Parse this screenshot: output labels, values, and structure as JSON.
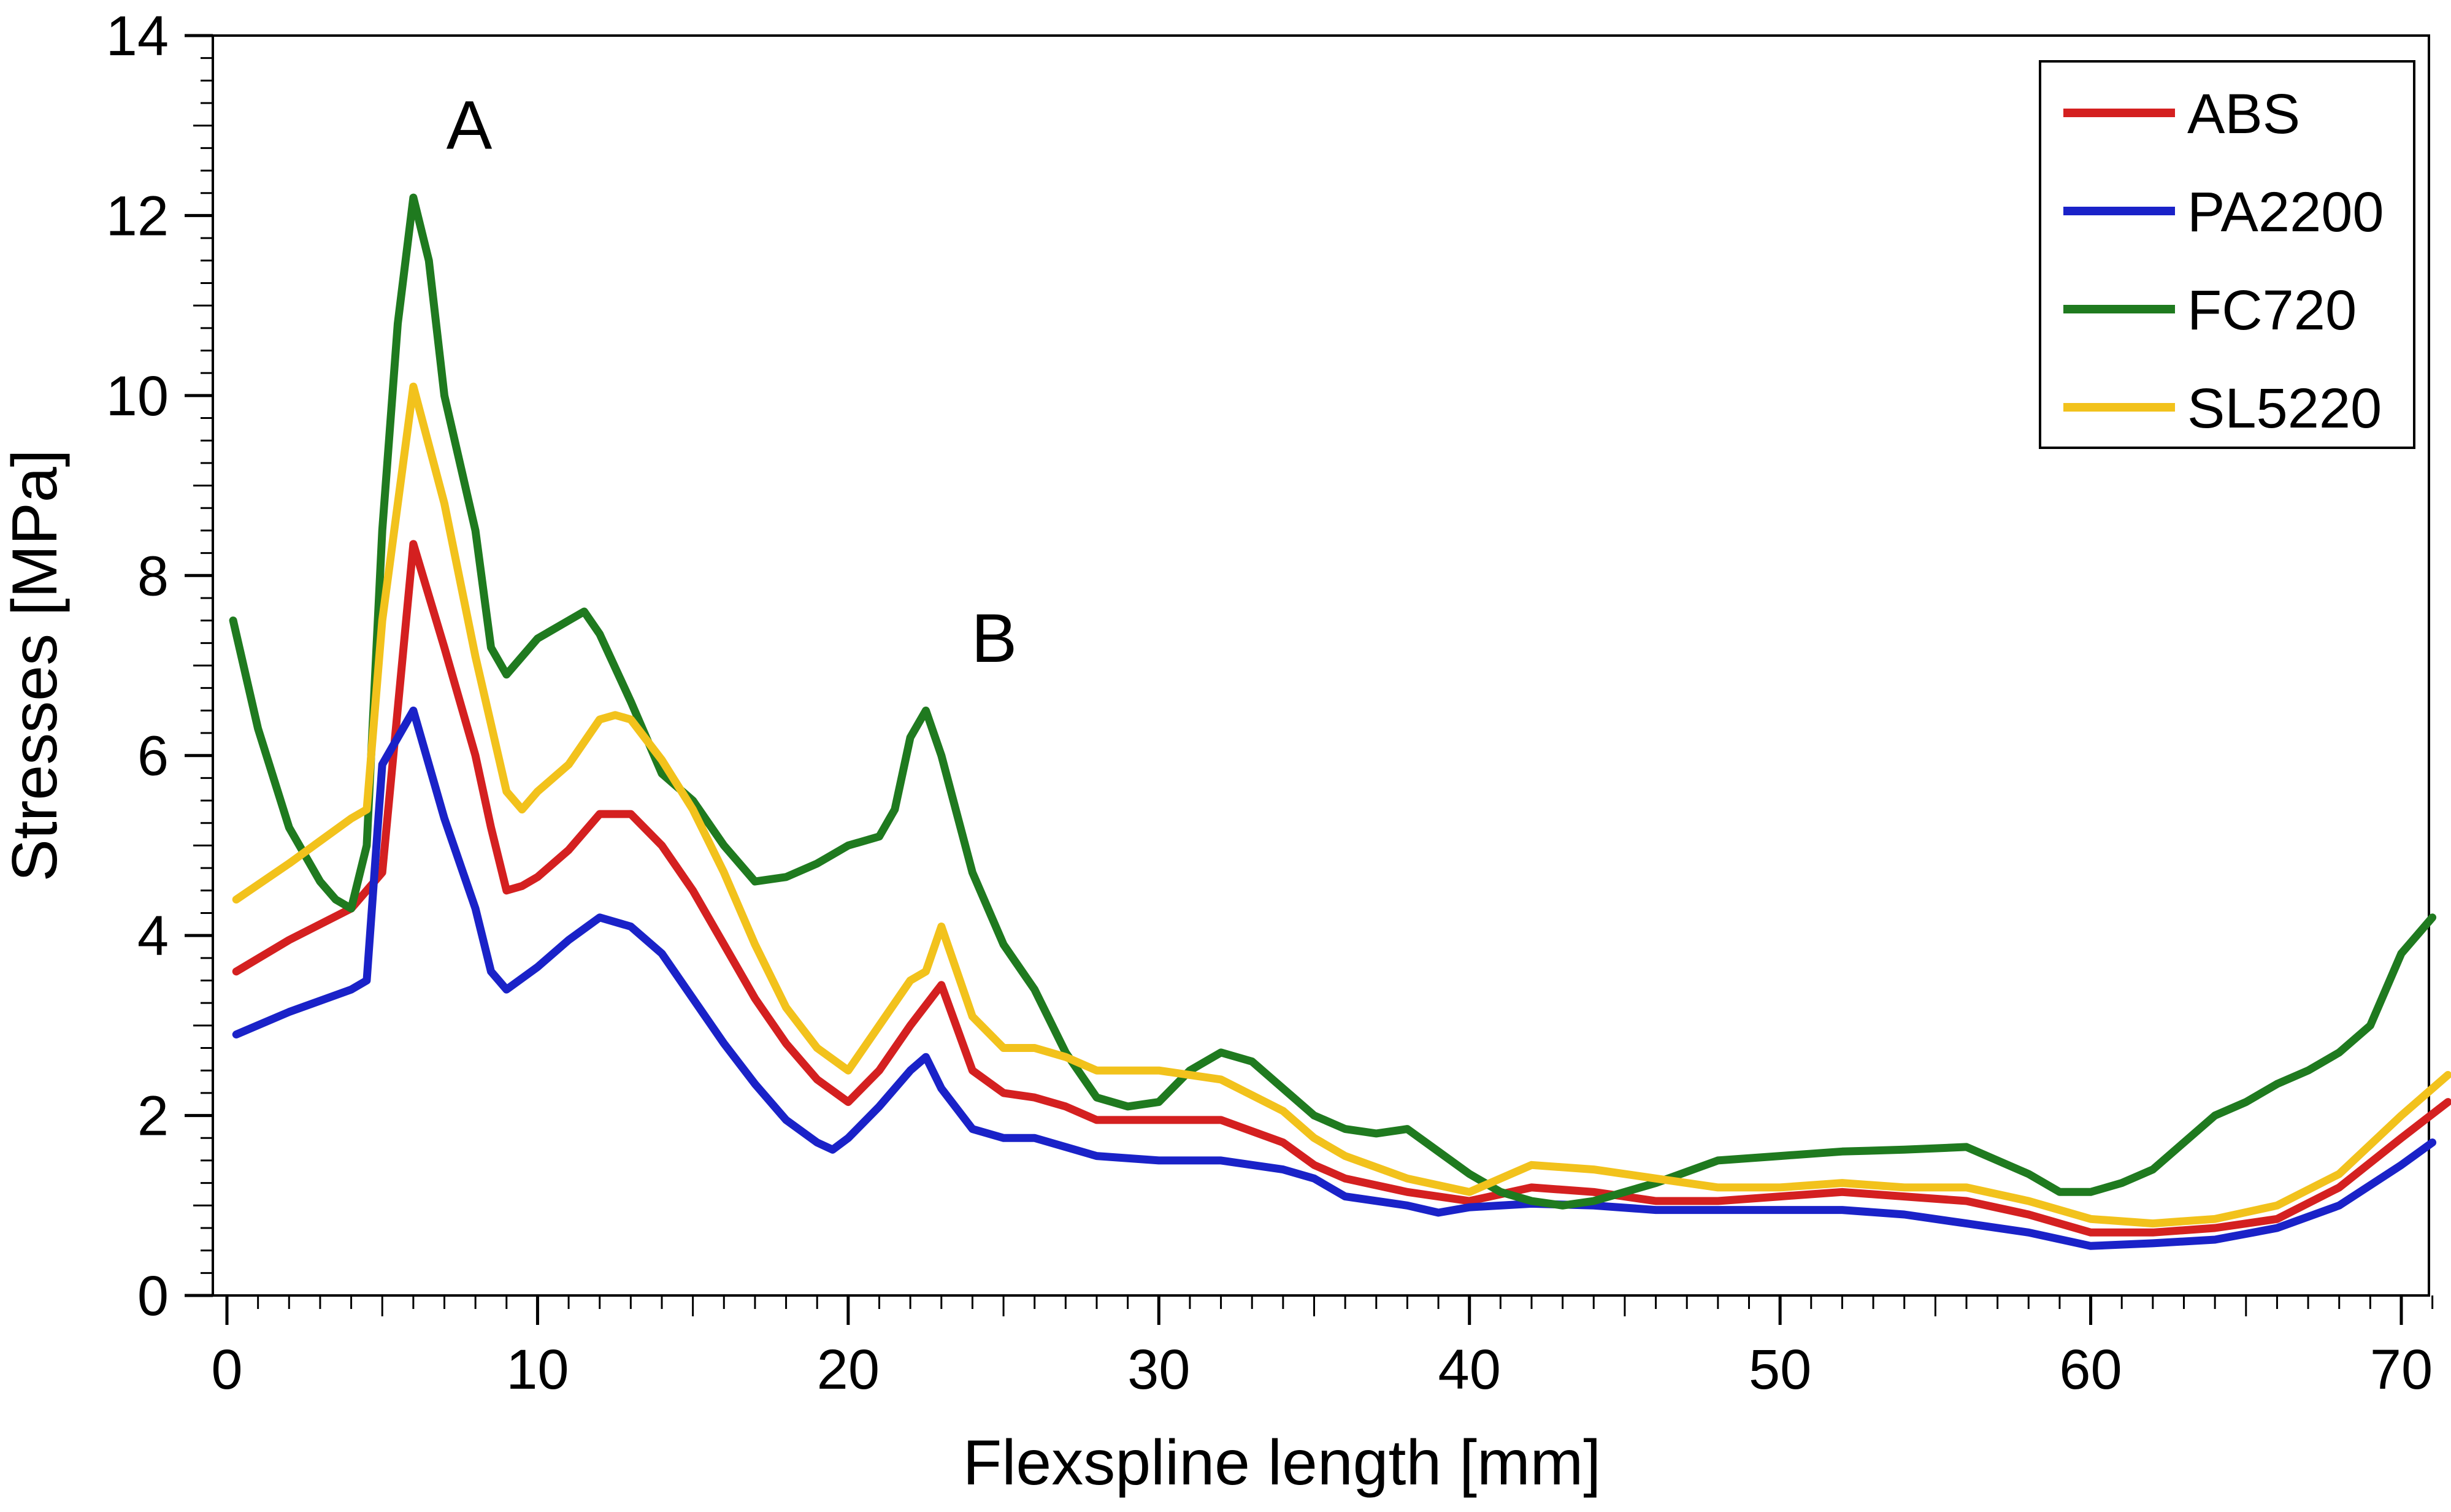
{
  "chart_data": {
    "type": "line",
    "title": "",
    "xlabel": "Flexspline length [mm]",
    "ylabel": "Stresses [MPa]",
    "xlim": [
      0,
      72
    ],
    "ylim": [
      0,
      14
    ],
    "x_ticks": [
      "0",
      "10",
      "20",
      "30",
      "40",
      "50",
      "60",
      "70"
    ],
    "y_ticks": [
      "0",
      "2",
      "4",
      "6",
      "8",
      "10",
      "12",
      "14"
    ],
    "grid": false,
    "legend_position": "top-right",
    "annotations": [
      {
        "text": "A",
        "x": 7.8,
        "y": 13.0
      },
      {
        "text": "B",
        "x": 24.7,
        "y": 7.3
      }
    ],
    "series": [
      {
        "name": "ABS",
        "color": "#d42020",
        "x": [
          0.3,
          2,
          4,
          5,
          6,
          7,
          8,
          8.5,
          9,
          9.5,
          10,
          11,
          12,
          13,
          14,
          15,
          16,
          17,
          18,
          19,
          20,
          21,
          22,
          23,
          24,
          25,
          26,
          27,
          28,
          30,
          32,
          34,
          35,
          36,
          38,
          40,
          42,
          44,
          46,
          48,
          50,
          52,
          54,
          56,
          58,
          60,
          62,
          64,
          66,
          68,
          70,
          71.5
        ],
        "y": [
          3.6,
          3.95,
          4.3,
          4.7,
          8.35,
          7.2,
          6.0,
          5.2,
          4.5,
          4.55,
          4.65,
          4.95,
          5.35,
          5.35,
          5.0,
          4.5,
          3.9,
          3.3,
          2.8,
          2.4,
          2.15,
          2.5,
          3.0,
          3.45,
          2.5,
          2.25,
          2.2,
          2.1,
          1.95,
          1.95,
          1.95,
          1.7,
          1.45,
          1.3,
          1.15,
          1.05,
          1.2,
          1.15,
          1.05,
          1.05,
          1.1,
          1.15,
          1.1,
          1.05,
          0.9,
          0.7,
          0.7,
          0.75,
          0.85,
          1.2,
          1.75,
          2.15
        ]
      },
      {
        "name": "PA2200",
        "color": "#1a22c8",
        "x": [
          0.3,
          2,
          4,
          4.5,
          5,
          6,
          7,
          8,
          8.5,
          9,
          10,
          11,
          12,
          13,
          14,
          15,
          16,
          17,
          18,
          19,
          19.5,
          20,
          21,
          22,
          22.5,
          23,
          24,
          25,
          26,
          28,
          30,
          32,
          34,
          35,
          36,
          38,
          39,
          40,
          42,
          44,
          46,
          48,
          50,
          52,
          54,
          56,
          58,
          60,
          62,
          64,
          66,
          68,
          70,
          71
        ],
        "y": [
          2.9,
          3.15,
          3.4,
          3.5,
          5.9,
          6.5,
          5.3,
          4.3,
          3.6,
          3.4,
          3.65,
          3.95,
          4.2,
          4.1,
          3.8,
          3.3,
          2.8,
          2.35,
          1.95,
          1.7,
          1.62,
          1.75,
          2.1,
          2.5,
          2.65,
          2.3,
          1.85,
          1.75,
          1.75,
          1.55,
          1.5,
          1.5,
          1.4,
          1.3,
          1.1,
          1.0,
          0.92,
          0.98,
          1.02,
          1.0,
          0.95,
          0.95,
          0.95,
          0.95,
          0.9,
          0.8,
          0.7,
          0.55,
          0.58,
          0.62,
          0.75,
          1.0,
          1.45,
          1.7
        ]
      },
      {
        "name": "FC720",
        "color": "#1f7a1f",
        "x": [
          0.2,
          1,
          2,
          3,
          3.5,
          4,
          4.5,
          5,
          5.5,
          6,
          6.5,
          7,
          8,
          8.5,
          9,
          10,
          11,
          11.5,
          12,
          13,
          14,
          15,
          16,
          17,
          18,
          19,
          20,
          21,
          21.5,
          22,
          22.5,
          23,
          24,
          25,
          26,
          27,
          28,
          29,
          30,
          31,
          32,
          33,
          34,
          35,
          36,
          37,
          38,
          39,
          40,
          41,
          42,
          43,
          44,
          46,
          48,
          50,
          52,
          54,
          56,
          58,
          59,
          60,
          61,
          62,
          63,
          64,
          65,
          66,
          67,
          68,
          69,
          70,
          71
        ],
        "y": [
          7.5,
          6.3,
          5.2,
          4.6,
          4.4,
          4.3,
          5.0,
          8.5,
          10.8,
          12.2,
          11.5,
          10.0,
          8.5,
          7.2,
          6.9,
          7.3,
          7.5,
          7.6,
          7.35,
          6.6,
          5.8,
          5.5,
          5.0,
          4.6,
          4.65,
          4.8,
          5.0,
          5.1,
          5.4,
          6.2,
          6.5,
          6.0,
          4.7,
          3.9,
          3.4,
          2.7,
          2.2,
          2.1,
          2.15,
          2.5,
          2.7,
          2.6,
          2.3,
          2.0,
          1.85,
          1.8,
          1.85,
          1.6,
          1.35,
          1.15,
          1.05,
          1.0,
          1.05,
          1.25,
          1.5,
          1.55,
          1.6,
          1.62,
          1.65,
          1.35,
          1.15,
          1.15,
          1.25,
          1.4,
          1.7,
          2.0,
          2.15,
          2.35,
          2.5,
          2.7,
          3.0,
          3.8,
          4.2
        ]
      },
      {
        "name": "SL5220",
        "color": "#f2c21c",
        "x": [
          0.3,
          2,
          4,
          4.5,
          5,
          6,
          7,
          8,
          9,
          9.5,
          10,
          11,
          12,
          12.5,
          13,
          14,
          15,
          16,
          17,
          18,
          19,
          20,
          21,
          22,
          22.5,
          23,
          24,
          25,
          26,
          27,
          28,
          30,
          32,
          34,
          35,
          36,
          38,
          40,
          42,
          44,
          46,
          48,
          50,
          52,
          54,
          56,
          58,
          60,
          62,
          64,
          66,
          68,
          70,
          71.5
        ],
        "y": [
          4.4,
          4.8,
          5.3,
          5.4,
          7.5,
          10.1,
          8.8,
          7.1,
          5.6,
          5.4,
          5.6,
          5.9,
          6.4,
          6.45,
          6.4,
          5.95,
          5.4,
          4.7,
          3.9,
          3.2,
          2.75,
          2.5,
          3.0,
          3.5,
          3.6,
          4.1,
          3.1,
          2.75,
          2.75,
          2.65,
          2.5,
          2.5,
          2.4,
          2.05,
          1.75,
          1.55,
          1.3,
          1.15,
          1.45,
          1.4,
          1.3,
          1.2,
          1.2,
          1.25,
          1.2,
          1.2,
          1.05,
          0.85,
          0.8,
          0.85,
          1.0,
          1.35,
          2.0,
          2.45
        ]
      }
    ]
  }
}
